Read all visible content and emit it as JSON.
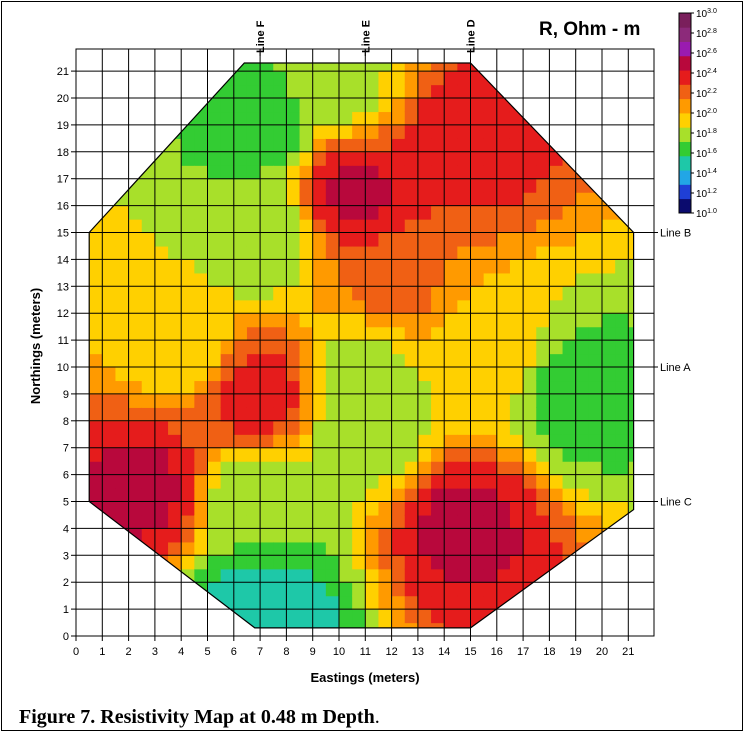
{
  "caption": {
    "bold_text": "Figure 7.  Resistivity Map at 0.48 m Depth",
    "trailing": "."
  },
  "chart_data": {
    "type": "heatmap",
    "title": "",
    "xlabel": "Eastings (meters)",
    "ylabel": "Northings (meters)",
    "xlim": [
      0,
      21.8
    ],
    "ylim": [
      0,
      21.8
    ],
    "x_ticks": [
      "0",
      "1",
      "2",
      "3",
      "4",
      "5",
      "6",
      "7",
      "8",
      "9",
      "10",
      "11",
      "12",
      "13",
      "14",
      "15",
      "16",
      "17",
      "18",
      "19",
      "20",
      "21"
    ],
    "y_ticks": [
      "0",
      "1",
      "2",
      "3",
      "4",
      "5",
      "6",
      "7",
      "8",
      "9",
      "10",
      "11",
      "12",
      "13",
      "14",
      "15",
      "16",
      "17",
      "18",
      "19",
      "20",
      "21"
    ],
    "grid": true,
    "survey_lines": [
      {
        "name": "Line F",
        "orientation": "vertical",
        "position": 7
      },
      {
        "name": "Line E",
        "orientation": "vertical",
        "position": 11
      },
      {
        "name": "Line D",
        "orientation": "vertical",
        "position": 15
      },
      {
        "name": "Line B",
        "orientation": "horizontal",
        "position": 15
      },
      {
        "name": "Line A",
        "orientation": "horizontal",
        "position": 10
      },
      {
        "name": "Line C",
        "orientation": "horizontal",
        "position": 5
      }
    ],
    "colorbar": {
      "label": "R, Ohm - m",
      "base": "10",
      "exponents": [
        "1.0",
        "1.2",
        "1.4",
        "1.6",
        "1.8",
        "2.0",
        "2.2",
        "2.4",
        "2.6",
        "2.8",
        "3.0"
      ],
      "colors": [
        "#0b0b6e",
        "#1f3fd6",
        "#22a6e6",
        "#1ec8a8",
        "#33cc33",
        "#a8e02a",
        "#ffd000",
        "#ff9a00",
        "#f06014",
        "#e51c1c",
        "#b8083c",
        "#9a1bb0",
        "#8c2a7a",
        "#7a1f5c"
      ]
    },
    "survey_boundary": [
      [
        0.5,
        15
      ],
      [
        6.4,
        21.3
      ],
      [
        15,
        21.3
      ],
      [
        21.2,
        15
      ],
      [
        21.2,
        4.7
      ],
      [
        15,
        0.3
      ],
      [
        6.8,
        0.3
      ],
      [
        0.5,
        5
      ]
    ],
    "sample_estimates": [
      {
        "x": 10.5,
        "y": 16.5,
        "log10_R": 2.5
      },
      {
        "x": 7,
        "y": 9,
        "log10_R": 2.4
      },
      {
        "x": 2.5,
        "y": 5.5,
        "log10_R": 2.5
      },
      {
        "x": 14.8,
        "y": 4.2,
        "log10_R": 2.5
      },
      {
        "x": 14.7,
        "y": 18.5,
        "log10_R": 2.4
      },
      {
        "x": 12,
        "y": 13,
        "log10_R": 2.2
      },
      {
        "x": 7,
        "y": 5,
        "log10_R": 1.7
      },
      {
        "x": 7,
        "y": 15,
        "log10_R": 1.7
      },
      {
        "x": 19,
        "y": 9,
        "log10_R": 1.6
      },
      {
        "x": 11,
        "y": 8,
        "log10_R": 1.7
      },
      {
        "x": 7,
        "y": 19,
        "log10_R": 1.6
      },
      {
        "x": 7,
        "y": 0.6,
        "log10_R": 1.4
      },
      {
        "x": 4,
        "y": 11,
        "log10_R": 1.9
      },
      {
        "x": 16,
        "y": 10.5,
        "log10_R": 1.9
      },
      {
        "x": 10,
        "y": 20.5,
        "log10_R": 1.8
      },
      {
        "x": 11,
        "y": 10,
        "log10_R": 1.8
      }
    ]
  }
}
